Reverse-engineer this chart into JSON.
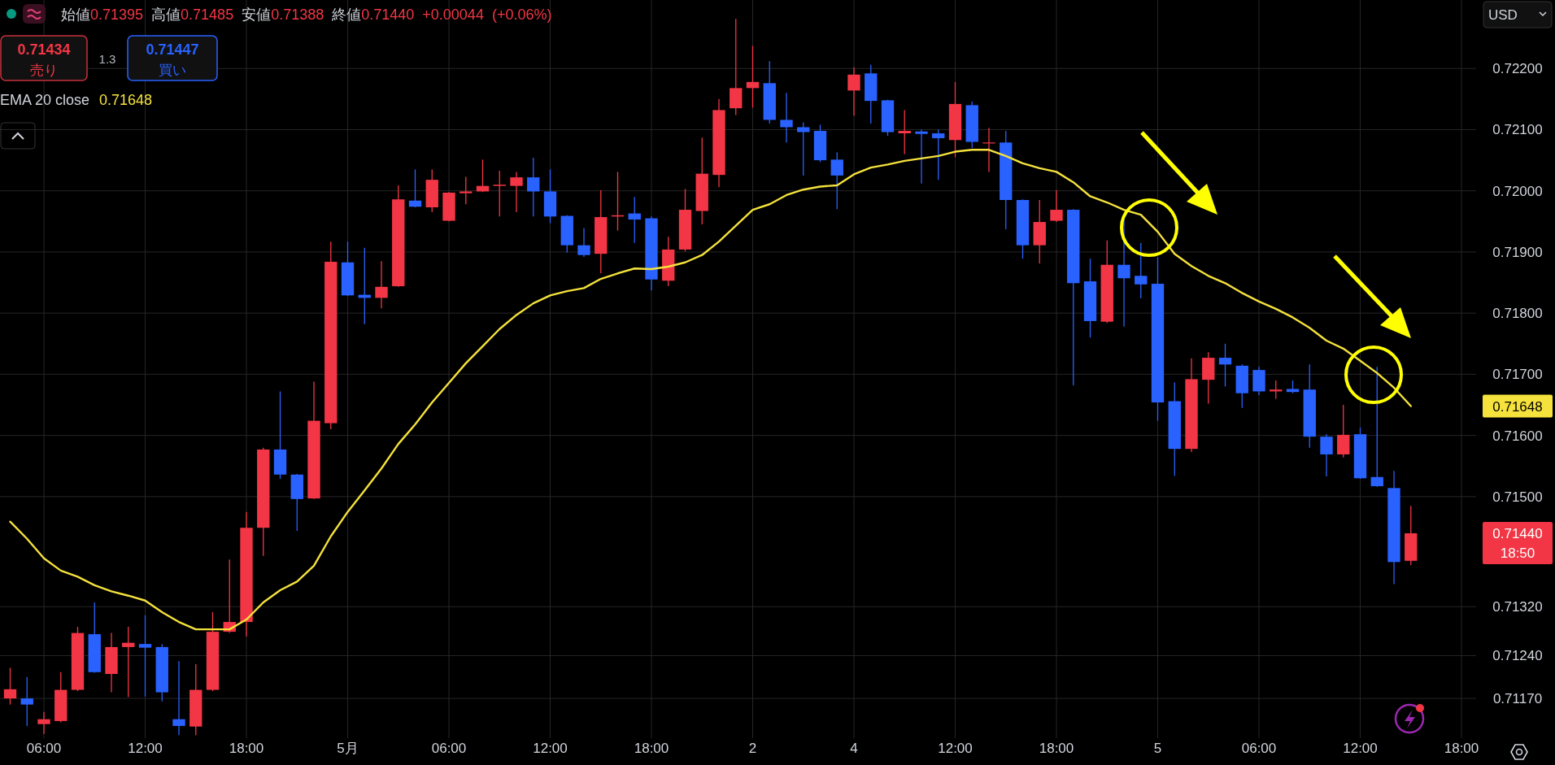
{
  "chart_data": {
    "type": "candlestick",
    "title": "始値0.71395 高値0.71485 安値0.71388 終値0.71440 +0.00044 (+0.06%)",
    "categories": [
      null,
      null,
      "06:00",
      null,
      null,
      null,
      null,
      null,
      "12:00",
      null,
      null,
      null,
      null,
      null,
      "18:00",
      null,
      null,
      null,
      null,
      null,
      "5月",
      null,
      null,
      null,
      null,
      null,
      "06:00",
      null,
      null,
      null,
      null,
      null,
      "12:00",
      null,
      null,
      null,
      null,
      null,
      "18:00",
      null,
      null,
      null,
      null,
      null,
      "2",
      null,
      null,
      null,
      null,
      null,
      "4",
      null,
      null,
      null,
      null,
      null,
      "12:00",
      null,
      null,
      null,
      null,
      null,
      "18:00",
      null,
      null,
      null,
      null,
      null,
      "5",
      null,
      null,
      null,
      null,
      null,
      "06:00",
      null,
      null,
      null,
      null,
      null,
      "12:00",
      null,
      null,
      null,
      null,
      null,
      "18:00"
    ],
    "ohlc": [
      [
        0.7117,
        0.7122,
        0.7116,
        0.71185
      ],
      [
        0.7117,
        0.71205,
        0.71125,
        0.7116
      ],
      [
        0.71128,
        0.71148,
        0.71112,
        0.71136
      ],
      [
        0.71133,
        0.71213,
        0.71131,
        0.71184
      ],
      [
        0.71184,
        0.71287,
        0.71182,
        0.71277
      ],
      [
        0.71275,
        0.71327,
        0.71212,
        0.71213
      ],
      [
        0.7121,
        0.71277,
        0.7118,
        0.71254
      ],
      [
        0.71254,
        0.71287,
        0.71172,
        0.71261
      ],
      [
        0.71259,
        0.71306,
        0.71173,
        0.71253
      ],
      [
        0.71254,
        0.71259,
        0.71165,
        0.7118
      ],
      [
        0.71136,
        0.71231,
        0.7111,
        0.71125
      ],
      [
        0.71124,
        0.71226,
        0.7111,
        0.71184
      ],
      [
        0.71184,
        0.71311,
        0.71182,
        0.71279
      ],
      [
        0.71279,
        0.71397,
        0.71277,
        0.71295
      ],
      [
        0.71295,
        0.71475,
        0.71271,
        0.71449
      ],
      [
        0.71449,
        0.7158,
        0.71403,
        0.71577
      ],
      [
        0.71577,
        0.71672,
        0.71529,
        0.71536
      ],
      [
        0.71536,
        0.71537,
        0.71444,
        0.71496
      ],
      [
        0.71497,
        0.71688,
        0.71496,
        0.71624
      ],
      [
        0.7162,
        0.71917,
        0.7161,
        0.71884
      ],
      [
        0.71883,
        0.71917,
        0.71828,
        0.71829
      ],
      [
        0.7183,
        0.71907,
        0.71782,
        0.71825
      ],
      [
        0.71825,
        0.71885,
        0.71808,
        0.71843
      ],
      [
        0.71844,
        0.72009,
        0.71843,
        0.71986
      ],
      [
        0.71984,
        0.72035,
        0.71973,
        0.71974
      ],
      [
        0.71973,
        0.72035,
        0.71965,
        0.72018
      ],
      [
        0.71951,
        0.71998,
        0.7195,
        0.71997
      ],
      [
        0.71996,
        0.72023,
        0.71978,
        0.71999
      ],
      [
        0.71999,
        0.72051,
        0.71998,
        0.72008
      ],
      [
        0.72008,
        0.72033,
        0.71958,
        0.7201
      ],
      [
        0.72008,
        0.72031,
        0.71965,
        0.72022
      ],
      [
        0.72022,
        0.72054,
        0.71958,
        0.71999
      ],
      [
        0.71999,
        0.72035,
        0.71947,
        0.71958
      ],
      [
        0.71959,
        0.7196,
        0.71899,
        0.71911
      ],
      [
        0.71911,
        0.71939,
        0.71892,
        0.71895
      ],
      [
        0.71897,
        0.72001,
        0.71865,
        0.71957
      ],
      [
        0.71958,
        0.72031,
        0.71935,
        0.7196
      ],
      [
        0.71963,
        0.7199,
        0.71915,
        0.71953
      ],
      [
        0.71955,
        0.71958,
        0.71837,
        0.71855
      ],
      [
        0.71853,
        0.71925,
        0.71844,
        0.71904
      ],
      [
        0.71904,
        0.72003,
        0.71901,
        0.71969
      ],
      [
        0.71967,
        0.72087,
        0.71945,
        0.72028
      ],
      [
        0.72026,
        0.7215,
        0.72006,
        0.72132
      ],
      [
        0.72135,
        0.72281,
        0.72124,
        0.72168
      ],
      [
        0.72168,
        0.72237,
        0.72136,
        0.72178
      ],
      [
        0.72176,
        0.72212,
        0.7211,
        0.72116
      ],
      [
        0.72116,
        0.7216,
        0.72079,
        0.72104
      ],
      [
        0.72104,
        0.72112,
        0.72025,
        0.72096
      ],
      [
        0.72098,
        0.72108,
        0.72047,
        0.7205
      ],
      [
        0.72051,
        0.72063,
        0.7197,
        0.72025
      ],
      [
        0.72164,
        0.72202,
        0.72123,
        0.7219
      ],
      [
        0.72192,
        0.72206,
        0.7211,
        0.72147
      ],
      [
        0.72148,
        0.72149,
        0.7209,
        0.72096
      ],
      [
        0.72094,
        0.72132,
        0.7206,
        0.72098
      ],
      [
        0.72097,
        0.721,
        0.72012,
        0.72093
      ],
      [
        0.72094,
        0.721,
        0.72018,
        0.72086
      ],
      [
        0.72083,
        0.72178,
        0.72055,
        0.72142
      ],
      [
        0.7214,
        0.72146,
        0.7207,
        0.7208
      ],
      [
        0.72078,
        0.72103,
        0.72031,
        0.72079
      ],
      [
        0.72079,
        0.72098,
        0.71937,
        0.71985
      ],
      [
        0.71985,
        0.71986,
        0.71889,
        0.71911
      ],
      [
        0.71911,
        0.71985,
        0.71881,
        0.71949
      ],
      [
        0.71951,
        0.72001,
        0.71949,
        0.71969
      ],
      [
        0.71969,
        0.7197,
        0.71682,
        0.71849
      ],
      [
        0.71852,
        0.71889,
        0.7176,
        0.71787
      ],
      [
        0.71786,
        0.71919,
        0.71784,
        0.71879
      ],
      [
        0.71879,
        0.71953,
        0.71778,
        0.71857
      ],
      [
        0.71861,
        0.71915,
        0.71824,
        0.71847
      ],
      [
        0.71848,
        0.71891,
        0.71624,
        0.71654
      ],
      [
        0.71656,
        0.71687,
        0.71534,
        0.71578
      ],
      [
        0.71578,
        0.71726,
        0.71573,
        0.71692
      ],
      [
        0.71691,
        0.71736,
        0.71652,
        0.71727
      ],
      [
        0.71727,
        0.7175,
        0.7168,
        0.71716
      ],
      [
        0.71714,
        0.71716,
        0.71645,
        0.71669
      ],
      [
        0.71707,
        0.71712,
        0.71666,
        0.71672
      ],
      [
        0.71672,
        0.7169,
        0.7166,
        0.71675
      ],
      [
        0.71676,
        0.7169,
        0.71669,
        0.71671
      ],
      [
        0.71675,
        0.71716,
        0.7158,
        0.71598
      ],
      [
        0.71598,
        0.71602,
        0.71533,
        0.71569
      ],
      [
        0.71569,
        0.7165,
        0.71564,
        0.71601
      ],
      [
        0.71602,
        0.71613,
        0.71529,
        0.7153
      ],
      [
        0.71532,
        0.71712,
        0.71516,
        0.71517
      ],
      [
        0.71514,
        0.71542,
        0.71357,
        0.71393
      ],
      [
        0.71395,
        0.71485,
        0.71388,
        0.7144
      ],
      null,
      null,
      null
    ],
    "colors": [
      "#f23645",
      "#2962ff",
      "#f23645",
      "#f23645",
      "#f23645",
      "#2962ff",
      "#f23645",
      "#f23645",
      "#2962ff",
      "#2962ff",
      "#2962ff",
      "#f23645",
      "#f23645",
      "#f23645",
      "#f23645",
      "#f23645",
      "#2962ff",
      "#2962ff",
      "#f23645",
      "#f23645",
      "#2962ff",
      "#2962ff",
      "#f23645",
      "#f23645",
      "#2962ff",
      "#f23645",
      "#f23645",
      "#f23645",
      "#f23645",
      "#f23645",
      "#f23645",
      "#2962ff",
      "#2962ff",
      "#2962ff",
      "#2962ff",
      "#f23645",
      "#f23645",
      "#2962ff",
      "#2962ff",
      "#f23645",
      "#f23645",
      "#f23645",
      "#f23645",
      "#f23645",
      "#f23645",
      "#2962ff",
      "#2962ff",
      "#2962ff",
      "#2962ff",
      "#2962ff",
      "#f23645",
      "#2962ff",
      "#2962ff",
      "#f23645",
      "#2962ff",
      "#2962ff",
      "#f23645",
      "#2962ff",
      "#f23645",
      "#2962ff",
      "#2962ff",
      "#f23645",
      "#f23645",
      "#2962ff",
      "#2962ff",
      "#f23645",
      "#2962ff",
      "#2962ff",
      "#2962ff",
      "#2962ff",
      "#f23645",
      "#f23645",
      "#2962ff",
      "#2962ff",
      "#2962ff",
      "#f23645",
      "#2962ff",
      "#2962ff",
      "#2962ff",
      "#f23645",
      "#2962ff",
      "#2962ff",
      "#2962ff",
      "#f23645",
      null,
      null,
      null
    ],
    "series": [
      {
        "type": "line",
        "name": "EMA 20 close",
        "color": "#f5e23c",
        "values": [
          0.71459,
          0.71431,
          0.71399,
          0.71379,
          0.71369,
          0.71355,
          0.71345,
          0.71338,
          0.7133,
          0.71311,
          0.71295,
          0.71283,
          0.71283,
          0.71283,
          0.71299,
          0.71327,
          0.71347,
          0.71361,
          0.71387,
          0.71435,
          0.71475,
          0.7151,
          0.71546,
          0.71586,
          0.71618,
          0.71654,
          0.71686,
          0.71718,
          0.71746,
          0.71774,
          0.71797,
          0.71816,
          0.71829,
          0.71836,
          0.71841,
          0.71856,
          0.71865,
          0.71873,
          0.71872,
          0.71876,
          0.71883,
          0.71895,
          0.71917,
          0.71943,
          0.71969,
          0.71978,
          0.71993,
          0.72002,
          0.72007,
          0.72009,
          0.72027,
          0.72038,
          0.72043,
          0.72049,
          0.72053,
          0.72057,
          0.72064,
          0.72067,
          0.72067,
          0.72057,
          0.72045,
          0.72037,
          0.72031,
          0.72014,
          0.71991,
          0.71981,
          0.71969,
          0.71961,
          0.71933,
          0.71897,
          0.71877,
          0.71861,
          0.71849,
          0.71833,
          0.71819,
          0.71807,
          0.71793,
          0.71776,
          0.71755,
          0.71742,
          0.71722,
          0.71702,
          0.71678,
          0.71648,
          null,
          null,
          null
        ]
      }
    ],
    "ylim": [
      0.71105,
      0.72312
    ],
    "yticks": [
      {
        "value": 0.722,
        "label": "0.72200"
      },
      {
        "value": 0.721,
        "label": "0.72100"
      },
      {
        "value": 0.72,
        "label": "0.72000"
      },
      {
        "value": 0.719,
        "label": "0.71900"
      },
      {
        "value": 0.718,
        "label": "0.71800"
      },
      {
        "value": 0.717,
        "label": "0.71700"
      },
      {
        "value": 0.716,
        "label": "0.71600"
      },
      {
        "value": 0.715,
        "label": "0.71500"
      },
      {
        "value": 0.7132,
        "label": "0.71320"
      },
      {
        "value": 0.7124,
        "label": "0.71240"
      },
      {
        "value": 0.7117,
        "label": "0.71170"
      }
    ],
    "grid": true,
    "legend": "top left",
    "annotations": [
      "0.71434",
      "売り",
      "1.3",
      "0.71447",
      "買い",
      "USD",
      "18:50",
      "0.71648",
      "0.71648",
      "0.71440"
    ]
  }
}
